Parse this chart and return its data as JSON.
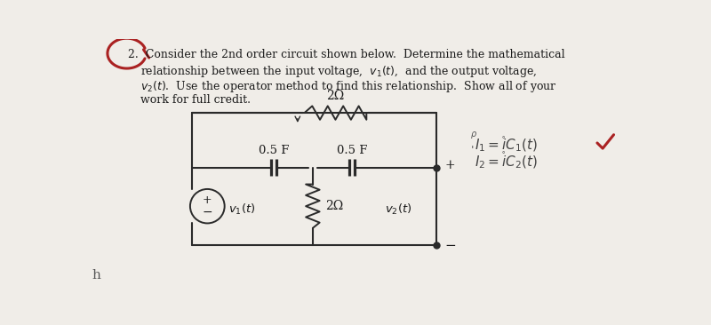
{
  "bg_color": "#f0ede8",
  "text_color": "#1a1a1a",
  "resistor_top_label": "2Ω",
  "resistor_mid_label": "2Ω",
  "cap1_label": "0.5 F",
  "cap2_label": "0.5 F",
  "v1_label": "v_1(t)",
  "v2_label": "v_2(t)",
  "circuit_lw": 1.5,
  "circuit_color": "#2a2a2a",
  "arrow_color": "#2a2a2a",
  "red_color": "#aa2222",
  "note1": "I_1 = iC_1(t)",
  "note2": "I_2 = iC_2(t)"
}
